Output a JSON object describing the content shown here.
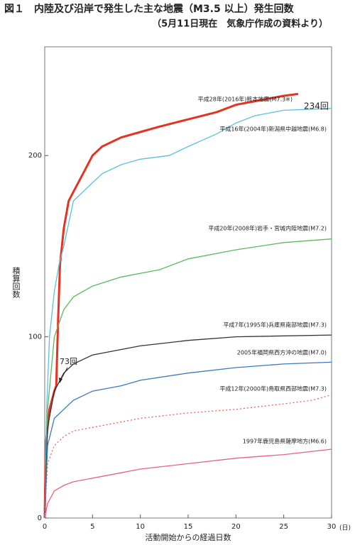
{
  "chart_data": {
    "type": "line",
    "title": "図１　内陸及び沿岸で発生した主な地震（M3.5 以上）発生回数",
    "subtitle": "（5月11日現在　気象庁作成の資料より）",
    "x_label": "活動開始からの経過日数",
    "x_unit": "(日)",
    "y_label": "積算回数",
    "xlim": [
      0,
      30
    ],
    "xticks": [
      0,
      5,
      10,
      15,
      20,
      25,
      30
    ],
    "ylim": [
      0,
      260
    ],
    "yticks": [
      0,
      100,
      200
    ],
    "series": [
      {
        "name": "平成28年(2016年)熊本地震(M7.3※)",
        "color": "#e53323",
        "x": [
          0,
          0.1,
          0.5,
          1,
          1.2,
          1.4,
          1.6,
          2,
          2.5,
          3,
          4,
          5,
          6,
          8,
          10,
          12,
          15,
          18,
          20,
          22,
          25,
          26.5
        ],
        "values": [
          0,
          40,
          60,
          70,
          73,
          110,
          140,
          160,
          175,
          180,
          190,
          200,
          205,
          210,
          213,
          216,
          220,
          224,
          228,
          230,
          233,
          234
        ]
      },
      {
        "name": "平成16年(2004年)新潟県中越地震(M6.8)",
        "color": "#5bc0e0",
        "x": [
          0,
          0.2,
          0.5,
          1,
          1.5,
          2,
          3,
          4,
          5,
          6,
          8,
          10,
          13,
          15,
          18,
          20,
          22,
          25,
          30
        ],
        "values": [
          0,
          60,
          100,
          125,
          140,
          150,
          175,
          180,
          185,
          190,
          195,
          198,
          200,
          205,
          212,
          218,
          222,
          225,
          226
        ]
      },
      {
        "name": "平成20年(2008年)岩手・宮城内陸地震(M7.2)",
        "color": "#5cb85c",
        "x": [
          0,
          0.3,
          1,
          2,
          3,
          5,
          8,
          12,
          15,
          20,
          25,
          30
        ],
        "values": [
          0,
          60,
          100,
          115,
          122,
          128,
          133,
          137,
          143,
          148,
          152,
          154
        ]
      },
      {
        "name": "平成7年(1995年)兵庫県南部地震(M7.3)",
        "color": "#333333",
        "x": [
          0,
          0.3,
          1,
          2,
          3,
          5,
          8,
          10,
          15,
          20,
          30
        ],
        "values": [
          0,
          50,
          70,
          80,
          85,
          90,
          93,
          95,
          98,
          100,
          101
        ]
      },
      {
        "name": "2005年福岡県西方沖の地震(M7.0)",
        "color": "#3a78c0",
        "x": [
          0,
          0.3,
          1,
          2,
          3,
          5,
          8,
          10,
          15,
          20,
          25,
          30
        ],
        "values": [
          0,
          40,
          55,
          60,
          65,
          70,
          73,
          76,
          80,
          83,
          85,
          86
        ]
      },
      {
        "name": "平成12年(2000年)鳥取県西部地震(M7.3)",
        "color": "#e8605a",
        "dashed": true,
        "x": [
          0,
          0.3,
          1,
          2,
          3,
          5,
          8,
          10,
          15,
          20,
          25,
          28,
          30
        ],
        "values": [
          0,
          30,
          40,
          45,
          48,
          50,
          53,
          55,
          58,
          60,
          63,
          65,
          68
        ]
      },
      {
        "name": "1997年鹿児島県薩摩地方(M6.6)",
        "color": "#e8608a",
        "x": [
          0,
          0.3,
          1,
          2,
          3,
          5,
          8,
          10,
          15,
          20,
          25,
          30
        ],
        "values": [
          0,
          8,
          15,
          18,
          20,
          22,
          25,
          27,
          30,
          33,
          35,
          38
        ]
      }
    ],
    "annotations": [
      "234回",
      "73回"
    ]
  }
}
